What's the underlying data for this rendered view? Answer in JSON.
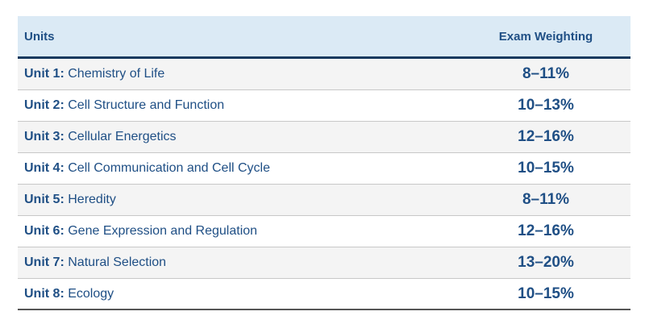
{
  "table": {
    "headers": {
      "units": "Units",
      "weighting": "Exam Weighting"
    },
    "rows": [
      {
        "unit": "Unit 1:",
        "title": "Chemistry of Life",
        "weighting": "8–11%"
      },
      {
        "unit": "Unit 2:",
        "title": "Cell Structure and Function",
        "weighting": "10–13%"
      },
      {
        "unit": "Unit 3:",
        "title": "Cellular Energetics",
        "weighting": "12–16%"
      },
      {
        "unit": "Unit 4:",
        "title": "Cell Communication and Cell Cycle",
        "weighting": "10–15%"
      },
      {
        "unit": "Unit 5:",
        "title": "Heredity",
        "weighting": "8–11%"
      },
      {
        "unit": "Unit 6:",
        "title": "Gene Expression and Regulation",
        "weighting": "12–16%"
      },
      {
        "unit": "Unit 7:",
        "title": "Natural Selection",
        "weighting": "13–20%"
      },
      {
        "unit": "Unit 8:",
        "title": "Ecology",
        "weighting": "10–15%"
      }
    ]
  },
  "colors": {
    "header_background": "#dbeaf5",
    "header_rule": "#173a5e",
    "text": "#1f4f85",
    "row_alt": "#f4f4f4"
  }
}
